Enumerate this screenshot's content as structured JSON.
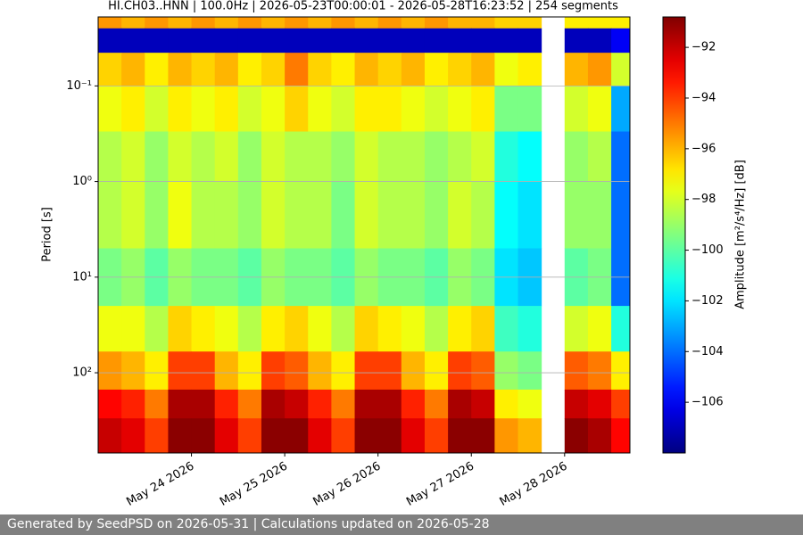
{
  "chart_data": {
    "type": "heatmap",
    "title": "HI.CH03..HNN | 100.0Hz | 2026-05-23T00:00:01 - 2026-05-28T16:23:52 | 254 segments",
    "y_label": "Period [s]",
    "colorbar_label": "Amplitude [m²/s⁴/Hz] [dB]",
    "colormap": "jet",
    "y_log": true,
    "y_inverted": true,
    "grid": true,
    "xlim": [
      23.0,
      28.7
    ],
    "xticks": [
      {
        "value": 24,
        "label": "May 24 2026"
      },
      {
        "value": 25,
        "label": "May 25 2026"
      },
      {
        "value": 26,
        "label": "May 26 2026"
      },
      {
        "value": 27,
        "label": "May 27 2026"
      },
      {
        "value": 28,
        "label": "May 28 2026"
      }
    ],
    "ylim": [
      0.019,
      690
    ],
    "yticks": [
      {
        "value": 0.1,
        "label": "10⁻¹"
      },
      {
        "value": 1,
        "label": "10⁰"
      },
      {
        "value": 10,
        "label": "10¹"
      },
      {
        "value": 100,
        "label": "10²"
      }
    ],
    "clim": [
      -108,
      -90.8
    ],
    "cticks": [
      {
        "value": -92,
        "label": "−92"
      },
      {
        "value": -94,
        "label": "−94"
      },
      {
        "value": -96,
        "label": "−96"
      },
      {
        "value": -98,
        "label": "−98"
      },
      {
        "value": -100,
        "label": "−100"
      },
      {
        "value": -102,
        "label": "−102"
      },
      {
        "value": -104,
        "label": "−104"
      },
      {
        "value": -106,
        "label": "−106"
      }
    ],
    "x": [
      23,
      23.25,
      23.5,
      23.75,
      24,
      24.25,
      24.5,
      24.75,
      25,
      25.25,
      25.5,
      25.75,
      26,
      26.25,
      26.5,
      26.75,
      27,
      27.25,
      27.5,
      27.75,
      28,
      28.25,
      28.5,
      28.7
    ],
    "y": [
      0.019,
      0.025,
      0.045,
      0.1,
      0.3,
      1,
      5,
      20,
      60,
      150,
      300,
      690
    ],
    "z": [
      [
        -95.5,
        -96,
        -95.5,
        -96,
        -95.5,
        -96,
        -95.5,
        -96,
        -95.5,
        -96,
        -95.5,
        -96,
        -95.5,
        -96,
        -95.5,
        -96,
        -96,
        -96.5,
        -96.5,
        null,
        -97,
        -97,
        -97
      ],
      [
        -107,
        -107,
        -107,
        -107,
        -107,
        -107,
        -107,
        -107,
        -107,
        -107,
        -107,
        -107,
        -107,
        -107,
        -107,
        -107,
        -107,
        -107,
        -107,
        null,
        -107,
        -107,
        -106
      ],
      [
        -96.5,
        -96,
        -97,
        -96,
        -96.5,
        -96,
        -97,
        -96.5,
        -95,
        -96.5,
        -97,
        -96,
        -96.5,
        -96,
        -97,
        -96.5,
        -96,
        -97.5,
        -97,
        null,
        -96,
        -95.5,
        -98
      ],
      [
        -97.5,
        -97,
        -98,
        -97,
        -97.5,
        -97,
        -98,
        -97.5,
        -96.5,
        -97.5,
        -98,
        -97,
        -97,
        -97.5,
        -98,
        -97.5,
        -97,
        -99.5,
        -99.5,
        null,
        -98,
        -97.5,
        -103
      ],
      [
        -98.5,
        -98,
        -99,
        -98,
        -98.5,
        -98,
        -99,
        -98,
        -98.5,
        -98.5,
        -99,
        -98,
        -98.5,
        -98.5,
        -99,
        -98.5,
        -98,
        -101,
        -101.5,
        null,
        -99,
        -98.5,
        -104
      ],
      [
        -98.5,
        -98,
        -99,
        -97.5,
        -98.5,
        -98.5,
        -99,
        -98,
        -98.5,
        -98.5,
        -99.5,
        -98,
        -98.5,
        -98.5,
        -99,
        -98,
        -98.5,
        -101.5,
        -102,
        null,
        -99,
        -99,
        -104
      ],
      [
        -99.5,
        -99,
        -100,
        -99,
        -99.5,
        -99.5,
        -100,
        -99,
        -99.5,
        -99.5,
        -100,
        -99,
        -99.5,
        -99.5,
        -100,
        -99,
        -99.5,
        -102,
        -102.5,
        null,
        -100,
        -99.5,
        -104
      ],
      [
        -97.5,
        -97.5,
        -98.5,
        -96.5,
        -97,
        -97.5,
        -98.5,
        -97,
        -96.5,
        -97.5,
        -98.5,
        -96.5,
        -97,
        -97.5,
        -98.5,
        -97,
        -96.5,
        -100.5,
        -101,
        null,
        -98,
        -97.5,
        -101
      ],
      [
        -95.5,
        -96,
        -97,
        -94,
        -94,
        -96,
        -97,
        -94,
        -94.5,
        -96,
        -97,
        -94,
        -94,
        -96,
        -97,
        -94,
        -94.5,
        -99,
        -99.5,
        null,
        -94.5,
        -95,
        -97
      ],
      [
        -93,
        -93.5,
        -95,
        -91.5,
        -91.5,
        -93.5,
        -95,
        -91.5,
        -92,
        -93.5,
        -95,
        -91.5,
        -91.5,
        -93.5,
        -95,
        -91.5,
        -92,
        -97,
        -97.5,
        null,
        -92,
        -92.5,
        -94
      ],
      [
        -92,
        -92.5,
        -94,
        -91,
        -91,
        -92.5,
        -94,
        -91,
        -91,
        -92.5,
        -94,
        -91,
        -91,
        -92.5,
        -94,
        -91,
        -91,
        -95.5,
        -96,
        null,
        -91,
        -91.5,
        -93
      ]
    ]
  },
  "footer": {
    "text": "Generated by SeedPSD on 2026-05-31 | Calculations updated on 2026-05-28"
  }
}
